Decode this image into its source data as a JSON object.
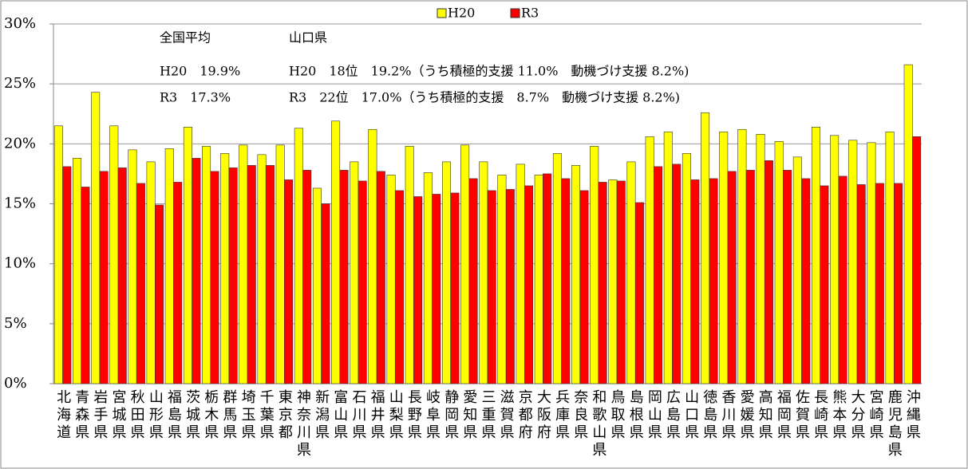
{
  "chart_data": {
    "type": "bar",
    "annotations": [
      "全国平均",
      "山口県",
      "H20　19.9%",
      "H20　18位　19.2%（うち積極的支援 11.0%　動機づけ支援 8.2%)",
      "R3　17.3%",
      "R3　22位　17.0%（うち積極的支援　8.7%　動機づけ支援 8.2%)"
    ],
    "categories": [
      "北海道",
      "青森県",
      "岩手県",
      "宮城県",
      "秋田県",
      "山形県",
      "福島県",
      "茨城県",
      "栃木県",
      "群馬県",
      "埼玉県",
      "千葉県",
      "東京都",
      "神奈川県",
      "新潟県",
      "富山県",
      "石川県",
      "福井県",
      "山梨県",
      "長野県",
      "岐阜県",
      "静岡県",
      "愛知県",
      "三重県",
      "滋賀県",
      "京都府",
      "大阪府",
      "兵庫県",
      "奈良県",
      "和歌山県",
      "鳥取県",
      "島根県",
      "岡山県",
      "広島県",
      "山口県",
      "徳島県",
      "香川県",
      "愛媛県",
      "高知県",
      "福岡県",
      "佐賀県",
      "長崎県",
      "熊本県",
      "大分県",
      "宮崎県",
      "鹿児島県",
      "沖縄県"
    ],
    "series": [
      {
        "name": "H20",
        "color": "#ffff00",
        "values": [
          21.5,
          18.8,
          24.3,
          21.5,
          19.5,
          18.5,
          19.6,
          21.4,
          19.8,
          19.2,
          19.9,
          19.1,
          19.9,
          21.3,
          16.3,
          21.9,
          18.5,
          21.2,
          17.4,
          19.8,
          17.6,
          18.5,
          19.9,
          18.5,
          17.4,
          18.3,
          17.4,
          19.2,
          18.2,
          19.8,
          17.0,
          18.5,
          20.6,
          21.0,
          19.2,
          22.6,
          21.0,
          21.2,
          20.8,
          20.2,
          18.9,
          21.4,
          20.7,
          20.3,
          20.1,
          21.0,
          26.6
        ]
      },
      {
        "name": "R3",
        "color": "#ff0000",
        "values": [
          18.1,
          16.4,
          17.7,
          18.0,
          16.7,
          14.9,
          16.8,
          18.8,
          17.7,
          18.0,
          18.2,
          18.2,
          17.0,
          17.8,
          15.0,
          17.8,
          16.9,
          17.7,
          16.1,
          15.6,
          15.8,
          15.9,
          17.1,
          16.1,
          16.2,
          16.5,
          17.5,
          17.1,
          16.1,
          16.8,
          16.9,
          15.1,
          18.1,
          18.3,
          17.0,
          17.1,
          17.7,
          17.8,
          18.6,
          17.8,
          17.1,
          16.5,
          17.3,
          16.6,
          16.7,
          16.7,
          20.6
        ]
      }
    ],
    "ylim": [
      0,
      30
    ],
    "yticks": [
      {
        "value": 0,
        "label": "0%"
      },
      {
        "value": 5,
        "label": "5%"
      },
      {
        "value": 10,
        "label": "10%"
      },
      {
        "value": 15,
        "label": "15%"
      },
      {
        "value": 20,
        "label": "20%"
      },
      {
        "value": 25,
        "label": "25%"
      },
      {
        "value": 30,
        "label": "30%"
      }
    ],
    "grid": true
  }
}
